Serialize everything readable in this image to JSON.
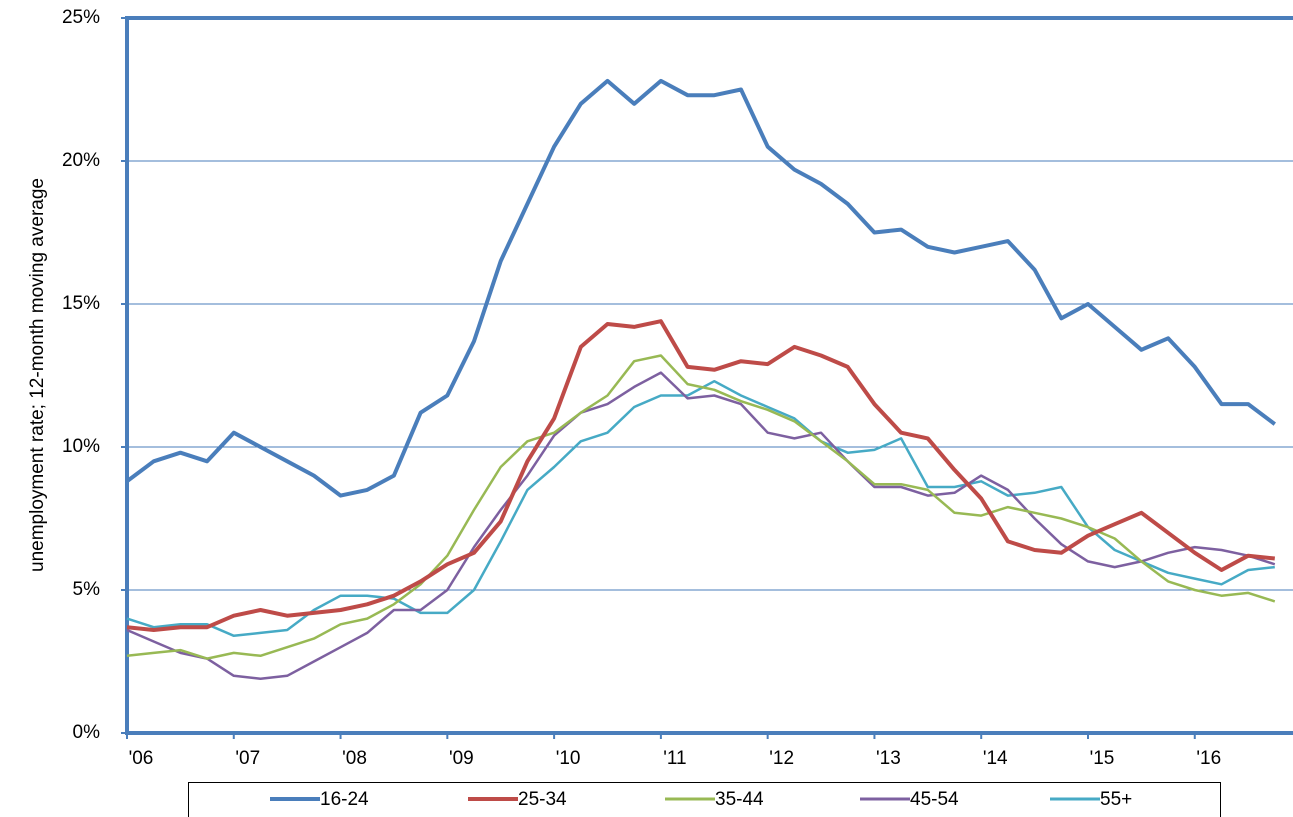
{
  "chart_data": {
    "type": "line",
    "y_label": "unemployment rate; 12-month moving average",
    "x": [
      2006,
      2006.25,
      2006.5,
      2006.75,
      2007,
      2007.25,
      2007.5,
      2007.75,
      2008,
      2008.25,
      2008.5,
      2008.75,
      2009,
      2009.25,
      2009.5,
      2009.75,
      2010,
      2010.25,
      2010.5,
      2010.75,
      2011,
      2011.25,
      2011.5,
      2011.75,
      2012,
      2012.25,
      2012.5,
      2012.75,
      2013,
      2013.25,
      2013.5,
      2013.75,
      2014,
      2014.25,
      2014.5,
      2014.75,
      2015,
      2015.25,
      2015.5,
      2015.75,
      2016,
      2016.25,
      2016.5,
      2016.75
    ],
    "xlim": [
      2006,
      2016.92
    ],
    "xticks": [
      {
        "value": 2006,
        "label": "'06"
      },
      {
        "value": 2007,
        "label": "'07"
      },
      {
        "value": 2008,
        "label": "'08"
      },
      {
        "value": 2009,
        "label": "'09"
      },
      {
        "value": 2010,
        "label": "'10"
      },
      {
        "value": 2011,
        "label": "'11"
      },
      {
        "value": 2012,
        "label": "'12"
      },
      {
        "value": 2013,
        "label": "'13"
      },
      {
        "value": 2014,
        "label": "'14"
      },
      {
        "value": 2015,
        "label": "'15"
      },
      {
        "value": 2016,
        "label": "'16"
      }
    ],
    "ylim": [
      0,
      25
    ],
    "yticks": [
      {
        "value": 0,
        "label": "0%"
      },
      {
        "value": 5,
        "label": "5%"
      },
      {
        "value": 10,
        "label": "10%"
      },
      {
        "value": 15,
        "label": "15%"
      },
      {
        "value": 20,
        "label": "20%"
      },
      {
        "value": 25,
        "label": "25%"
      }
    ],
    "grid": true,
    "legend": "bottom",
    "series": [
      {
        "name": "16-24",
        "color": "#4a7ebb",
        "values": [
          8.8,
          9.5,
          9.8,
          9.5,
          10.5,
          10.0,
          9.5,
          9.0,
          8.3,
          8.5,
          9.0,
          11.2,
          11.8,
          13.7,
          16.5,
          18.5,
          20.5,
          22.0,
          22.8,
          22.0,
          22.8,
          22.3,
          22.3,
          22.5,
          20.5,
          19.7,
          19.2,
          18.5,
          17.5,
          17.6,
          17.0,
          16.8,
          17.0,
          17.2,
          16.2,
          14.5,
          15.0,
          14.2,
          13.4,
          13.8,
          12.8,
          11.5,
          11.5,
          10.8
        ]
      },
      {
        "name": "25-34",
        "color": "#be4b48",
        "values": [
          3.7,
          3.6,
          3.7,
          3.7,
          4.1,
          4.3,
          4.1,
          4.2,
          4.3,
          4.5,
          4.8,
          5.3,
          5.9,
          6.3,
          7.4,
          9.5,
          11.0,
          13.5,
          14.3,
          14.2,
          14.4,
          12.8,
          12.7,
          13.0,
          12.9,
          13.5,
          13.2,
          12.8,
          11.5,
          10.5,
          10.3,
          9.2,
          8.2,
          6.7,
          6.4,
          6.3,
          6.9,
          7.3,
          7.7,
          7.0,
          6.3,
          5.7,
          6.2,
          6.1
        ]
      },
      {
        "name": "35-44",
        "color": "#98b954",
        "values": [
          2.7,
          2.8,
          2.9,
          2.6,
          2.8,
          2.7,
          3.0,
          3.3,
          3.8,
          4.0,
          4.5,
          5.2,
          6.2,
          7.8,
          9.3,
          10.2,
          10.5,
          11.2,
          11.8,
          13.0,
          13.2,
          12.2,
          12.0,
          11.6,
          11.3,
          10.9,
          10.2,
          9.5,
          8.7,
          8.7,
          8.5,
          7.7,
          7.6,
          7.9,
          7.7,
          7.5,
          7.2,
          6.8,
          6.0,
          5.3,
          5.0,
          4.8,
          4.9,
          4.6
        ]
      },
      {
        "name": "45-54",
        "color": "#7d60a0",
        "values": [
          3.6,
          3.2,
          2.8,
          2.6,
          2.0,
          1.9,
          2.0,
          2.5,
          3.0,
          3.5,
          4.3,
          4.3,
          5.0,
          6.5,
          7.8,
          9.0,
          10.4,
          11.2,
          11.5,
          12.1,
          12.6,
          11.7,
          11.8,
          11.5,
          10.5,
          10.3,
          10.5,
          9.5,
          8.6,
          8.6,
          8.3,
          8.4,
          9.0,
          8.5,
          7.5,
          6.6,
          6.0,
          5.8,
          6.0,
          6.3,
          6.5,
          6.4,
          6.2,
          5.9
        ]
      },
      {
        "name": "55+",
        "color": "#46aac5",
        "values": [
          4.0,
          3.7,
          3.8,
          3.8,
          3.4,
          3.5,
          3.6,
          4.3,
          4.8,
          4.8,
          4.7,
          4.2,
          4.2,
          5.0,
          6.7,
          8.5,
          9.3,
          10.2,
          10.5,
          11.4,
          11.8,
          11.8,
          12.3,
          11.8,
          11.4,
          11.0,
          10.2,
          9.8,
          9.9,
          10.3,
          8.6,
          8.6,
          8.8,
          8.3,
          8.4,
          8.6,
          7.2,
          6.4,
          6.0,
          5.6,
          5.4,
          5.2,
          5.7,
          5.8
        ]
      }
    ]
  }
}
